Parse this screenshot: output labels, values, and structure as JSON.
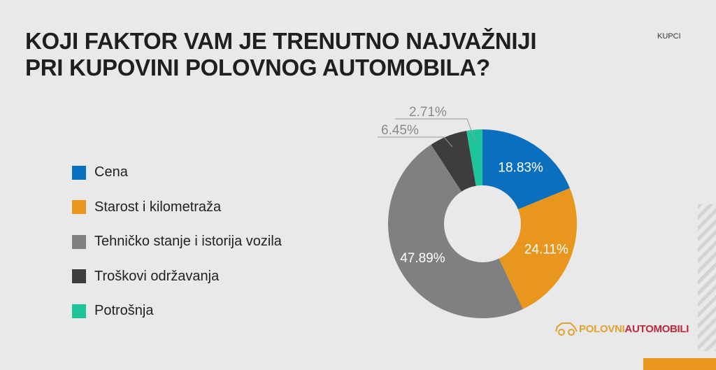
{
  "title_line1": "KOJI FAKTOR VAM JE TRENUTNO NAJVAŽNIJI",
  "title_line2": "PRI KUPOVINI POLOVNOG AUTOMOBILA?",
  "tag": "KUPCI",
  "logo": {
    "part1": "POLOVNI",
    "part2": "AUTOMOBILI"
  },
  "chart_data": {
    "type": "pie",
    "donut": true,
    "title": "KOJI FAKTOR VAM JE TRENUTNO NAJVAŽNIJI PRI KUPOVINI POLOVNOG AUTOMOBILA?",
    "legend_position": "left",
    "categories": [
      "Cena",
      "Starost i kilometraža",
      "Tehničko stanje i istorija vozila",
      "Troškovi održavanja",
      "Potrošnja"
    ],
    "values": [
      18.83,
      24.11,
      47.89,
      6.45,
      2.71
    ],
    "labels": [
      "18.83%",
      "24.11%",
      "47.89%",
      "6.45%",
      "2.71%"
    ],
    "colors": [
      "#0b6fc0",
      "#e8961e",
      "#808080",
      "#3d3d3d",
      "#1ec49a"
    ]
  }
}
